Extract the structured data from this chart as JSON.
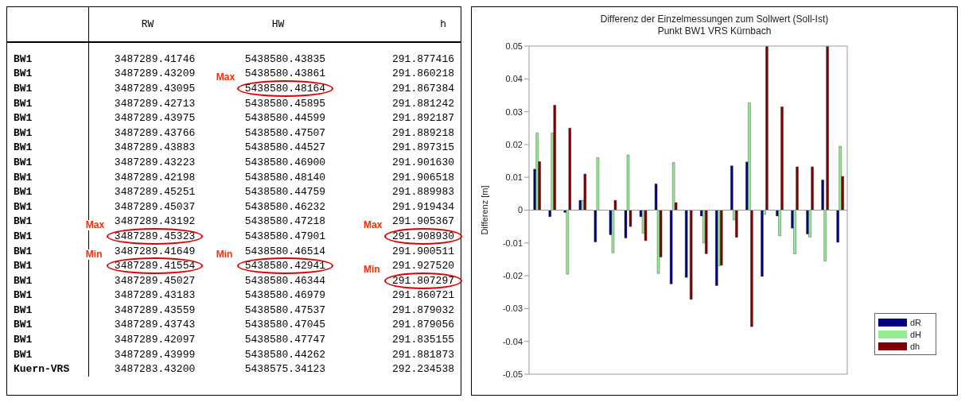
{
  "chart_data": [
    {
      "type": "other",
      "categories": [
        "RW",
        "HW",
        "h"
      ],
      "y_categories": [
        "BW1",
        "BW1",
        "BW1",
        "BW1",
        "BW1",
        "BW1",
        "BW1",
        "BW1",
        "BW1",
        "BW1",
        "BW1",
        "BW1",
        "BW1",
        "BW1",
        "BW1",
        "BW1",
        "BW1",
        "BW1",
        "BW1",
        "BW1",
        "BW1",
        "Kuern-VRS"
      ],
      "cell_labels": [
        [
          "3487289.41746",
          "5438580.43835",
          "291.877416"
        ],
        [
          "3487289.43209",
          "5438580.43861",
          "291.860218"
        ],
        [
          "3487289.43095",
          "5438580.48164",
          "291.867384"
        ],
        [
          "3487289.42713",
          "5438580.45895",
          "291.881242"
        ],
        [
          "3487289.43975",
          "5438580.44599",
          "291.892187"
        ],
        [
          "3487289.43766",
          "5438580.47507",
          "291.889218"
        ],
        [
          "3487289.43883",
          "5438580.44527",
          "291.897315"
        ],
        [
          "3487289.43223",
          "5438580.46900",
          "291.901630"
        ],
        [
          "3487289.42198",
          "5438580.48140",
          "291.906518"
        ],
        [
          "3487289.45251",
          "5438580.44759",
          "291.889983"
        ],
        [
          "3487289.45037",
          "5438580.46232",
          "291.919434"
        ],
        [
          "3487289.43192",
          "5438580.47218",
          "291.905367"
        ],
        [
          "3487289.45323",
          "5438580.47901",
          "291.908930"
        ],
        [
          "3487289.41649",
          "5438580.46514",
          "291.900511"
        ],
        [
          "3487289.41554",
          "5438580.42941",
          "291.927520"
        ],
        [
          "3487289.45027",
          "5438580.46344",
          "291.807297"
        ],
        [
          "3487289.43183",
          "5438580.46979",
          "291.860721"
        ],
        [
          "3487289.43559",
          "5438580.47537",
          "291.879032"
        ],
        [
          "3487289.43743",
          "5438580.47045",
          "291.879056"
        ],
        [
          "3487289.42097",
          "5438580.47747",
          "291.835155"
        ],
        [
          "3487289.43999",
          "5438580.44262",
          "291.881873"
        ],
        [
          "3487283.43200",
          "5438575.34123",
          "292.234538"
        ]
      ],
      "annotations": [
        {
          "text": "Max",
          "x": "HW",
          "y": "5438580.48164"
        },
        {
          "text": "Max",
          "x": "RW",
          "y": "3487289.45323"
        },
        {
          "text": "Max",
          "x": "h",
          "y": "291.908930"
        },
        {
          "text": "Min",
          "x": "RW",
          "y": "3487289.41554"
        },
        {
          "text": "Min",
          "x": "HW",
          "y": "5438580.42941"
        },
        {
          "text": "Min",
          "x": "h",
          "y": "291.807297"
        }
      ]
    },
    {
      "type": "bar",
      "title": "Differenz der Einzelmessungen zum Sollwert (Soll-Ist)",
      "subtitle": "Punkt BW1 VRS Kürnbach",
      "ylabel": "Differenz [m]",
      "categories": [
        null,
        null,
        null,
        null,
        null,
        null,
        null,
        null,
        null,
        null,
        null,
        null,
        null,
        null,
        null,
        null,
        null,
        null,
        null,
        null,
        null
      ],
      "series": [
        {
          "name": "dR",
          "color": "#000080",
          "values": [
            0.0125,
            -0.002,
            -0.0007,
            0.003,
            -0.0097,
            -0.0075,
            -0.0085,
            -0.002,
            0.008,
            -0.0225,
            -0.0205,
            -0.0018,
            -0.023,
            0.0135,
            0.0147,
            -0.0202,
            -0.0018,
            -0.0055,
            -0.0073,
            0.0092,
            -0.0098
          ]
        },
        {
          "name": "dH",
          "color": "#90ee90",
          "values": [
            0.0235,
            0.0235,
            -0.0195,
            0.003,
            0.016,
            -0.013,
            0.0168,
            -0.007,
            -0.0193,
            0.0145,
            0,
            -0.01,
            -0.017,
            -0.003,
            0.0327,
            -0.0013,
            -0.0078,
            -0.0133,
            -0.0082,
            -0.0155,
            0.0195
          ]
        },
        {
          "name": "dh",
          "color": "#800000",
          "values": [
            0.0148,
            0.032,
            0.025,
            0.011,
            0,
            0.003,
            -0.005,
            -0.0093,
            -0.0143,
            0.0023,
            -0.0272,
            -0.0133,
            -0.0168,
            -0.0083,
            -0.0355,
            0.05,
            0.0315,
            0.0132,
            0.0132,
            0.05,
            0.0103
          ]
        }
      ],
      "ylim": [
        -0.05,
        0.05
      ],
      "yticks": [
        -0.05,
        -0.04,
        -0.03,
        -0.02,
        -0.01,
        0,
        0.01,
        0.02,
        0.03,
        0.04,
        0.05
      ],
      "ref_lines": [
        {
          "axis": "y",
          "value": 0,
          "color": "#999999"
        }
      ],
      "legend": "bottom right",
      "tick_labels": "y"
    }
  ]
}
